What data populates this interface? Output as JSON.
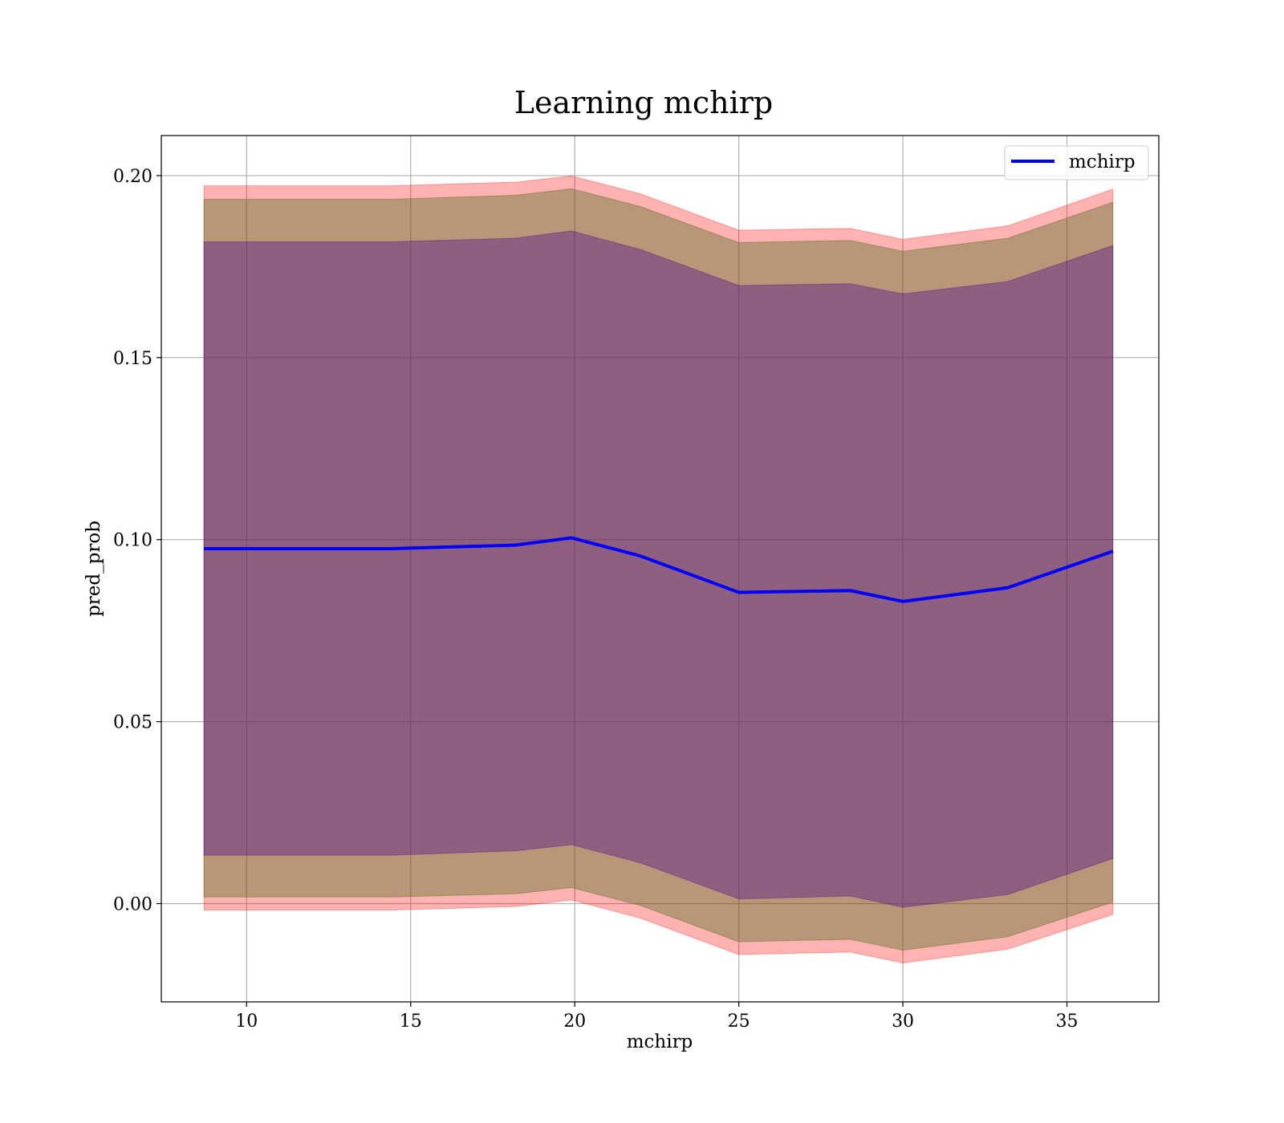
{
  "chart_data": {
    "type": "line",
    "title": "Learning mchirp",
    "xlabel": "mchirp",
    "ylabel": "pred_prob",
    "xlim": [
      7.4,
      37.8
    ],
    "ylim": [
      -0.027,
      0.211
    ],
    "x_ticks": [
      10,
      15,
      20,
      25,
      30,
      35
    ],
    "x_tick_labels": [
      "10",
      "15",
      "20",
      "25",
      "30",
      "35"
    ],
    "y_ticks": [
      0.0,
      0.05,
      0.1,
      0.15,
      0.2
    ],
    "y_tick_labels": [
      "0.00",
      "0.05",
      "0.10",
      "0.15",
      "0.20"
    ],
    "grid": true,
    "legend": {
      "location": "top-right",
      "entries": [
        "mchirp"
      ]
    },
    "x": [
      8.7,
      14.4,
      18.2,
      19.9,
      22.0,
      25.0,
      28.4,
      30.0,
      33.2,
      36.4
    ],
    "series": [
      {
        "name": "mchirp",
        "color": "#0000ff",
        "values": [
          0.0975,
          0.0975,
          0.0985,
          0.1005,
          0.0955,
          0.0855,
          0.086,
          0.083,
          0.0868,
          0.0968
        ]
      }
    ],
    "bands": [
      {
        "color": "#ff0000",
        "opacity": 0.3,
        "lower": [
          -0.0018,
          -0.0018,
          -0.0008,
          0.001,
          -0.004,
          -0.014,
          -0.0133,
          -0.0163,
          -0.0125,
          -0.003
        ],
        "upper": [
          0.1972,
          0.1972,
          0.1982,
          0.1999,
          0.195,
          0.185,
          0.1855,
          0.1825,
          0.1862,
          0.1963
        ]
      },
      {
        "color": "#4f6c1f",
        "opacity": 0.4,
        "lower": [
          0.0018,
          0.0018,
          0.0027,
          0.0044,
          -0.0005,
          -0.0105,
          -0.0098,
          -0.0128,
          -0.0091,
          0.0004
        ],
        "upper": [
          0.1935,
          0.1935,
          0.1946,
          0.1964,
          0.1915,
          0.1816,
          0.1822,
          0.1792,
          0.1828,
          0.1927
        ]
      },
      {
        "color": "#4f0c8f",
        "opacity": 0.4,
        "lower": [
          0.0133,
          0.0133,
          0.0145,
          0.0162,
          0.0112,
          0.0013,
          0.0021,
          -0.001,
          0.0025,
          0.0124
        ],
        "upper": [
          0.1818,
          0.1818,
          0.1828,
          0.1848,
          0.1797,
          0.1698,
          0.1703,
          0.1675,
          0.1709,
          0.1808
        ]
      }
    ]
  }
}
